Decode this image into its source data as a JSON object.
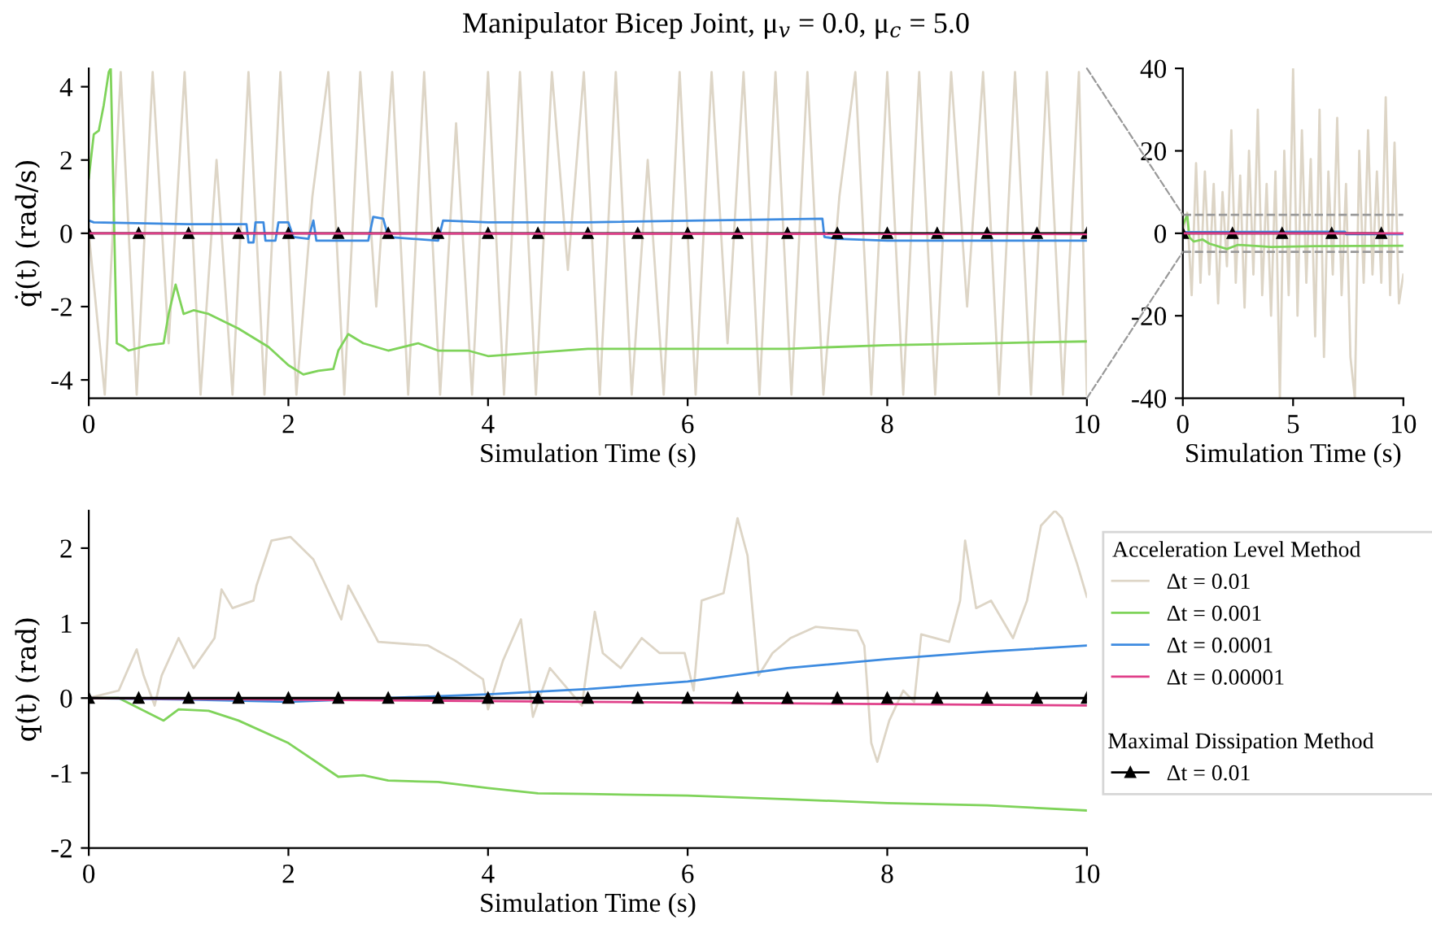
{
  "chart_data": [
    {
      "type": "line",
      "title": "Manipulator Bicep Joint, μ$_{v}$ = 0.0, μ$_{c}$ = 5.0",
      "xlabel": "Simulation Time (s)",
      "ylabel": "q̇(t) (rad/s)",
      "xlim": [
        0,
        10
      ],
      "ylim": [
        -4.5,
        4.5
      ],
      "xticks": [
        0,
        2,
        4,
        6,
        8,
        10
      ],
      "yticks": [
        -4,
        -2,
        0,
        2,
        4
      ],
      "grid": false,
      "legend": false,
      "line_style": "solid",
      "series": [
        {
          "color": "#ddd5c6",
          "marker": "none",
          "x": [
            0,
            0.16,
            0.32,
            0.48,
            0.64,
            0.8,
            0.96,
            1.12,
            1.28,
            1.44,
            1.6,
            1.76,
            1.92,
            2.08,
            2.24,
            2.4,
            2.56,
            2.72,
            2.88,
            3.04,
            3.2,
            3.36,
            3.52,
            3.68,
            3.84,
            4,
            4.16,
            4.32,
            4.48,
            4.64,
            4.8,
            4.96,
            5.12,
            5.28,
            5.44,
            5.6,
            5.76,
            5.92,
            6.08,
            6.24,
            6.4,
            6.56,
            6.72,
            6.88,
            7.04,
            7.2,
            7.36,
            7.52,
            7.68,
            7.84,
            8,
            8.16,
            8.32,
            8.48,
            8.64,
            8.8,
            8.96,
            9.12,
            9.28,
            9.44,
            9.6,
            9.76,
            9.92,
            10
          ],
          "values": [
            0,
            -4.4,
            4.4,
            -4.4,
            4.4,
            -3,
            4.4,
            -4.4,
            2,
            -4.4,
            4.4,
            -4.4,
            4.4,
            -4.4,
            1,
            4.4,
            -4.4,
            4.4,
            -2,
            4.4,
            -4.4,
            4.4,
            -4.4,
            3,
            -4.4,
            4.4,
            -4.4,
            4.4,
            -4.4,
            4.4,
            -1,
            4.4,
            -4.4,
            4.4,
            -4.4,
            2,
            -4.4,
            4.4,
            -4.4,
            4.4,
            -3,
            4.4,
            -4.4,
            4.4,
            -4.4,
            4.4,
            -4.4,
            1,
            4.4,
            -4.4,
            4.4,
            -4.4,
            4.4,
            -4.4,
            4.4,
            -2,
            4.4,
            -4.4,
            4.4,
            -4.4,
            4.4,
            -4.4,
            4.4,
            -4.4
          ]
        },
        {
          "color": "#7fd35a",
          "marker": "none",
          "x": [
            0,
            0.05,
            0.1,
            0.15,
            0.2,
            0.22,
            0.28,
            0.35,
            0.4,
            0.6,
            0.75,
            0.8,
            0.87,
            0.95,
            1.05,
            1.2,
            1.5,
            1.8,
            2.0,
            2.15,
            2.3,
            2.45,
            2.5,
            2.6,
            2.75,
            3.0,
            3.3,
            3.5,
            3.8,
            4.0,
            4.5,
            5,
            6,
            7,
            8,
            9,
            10
          ],
          "values": [
            1.5,
            2.7,
            2.8,
            3.5,
            4.4,
            4.5,
            -3,
            -3.1,
            -3.2,
            -3.05,
            -3.0,
            -2.2,
            -1.4,
            -2.2,
            -2.1,
            -2.2,
            -2.6,
            -3.1,
            -3.6,
            -3.85,
            -3.75,
            -3.7,
            -3.2,
            -2.75,
            -3.0,
            -3.2,
            -3.0,
            -3.2,
            -3.2,
            -3.35,
            -3.25,
            -3.15,
            -3.15,
            -3.15,
            -3.05,
            -3.0,
            -2.95
          ]
        },
        {
          "color": "#3d8be0",
          "marker": "none",
          "x": [
            0,
            0.05,
            1,
            1.58,
            1.6,
            1.65,
            1.67,
            1.75,
            1.77,
            1.87,
            1.9,
            2.0,
            2.05,
            2.2,
            2.25,
            2.28,
            2.8,
            2.85,
            2.95,
            3.0,
            3.5,
            3.55,
            4,
            5,
            7.35,
            7.37,
            7.5,
            8,
            10
          ],
          "values": [
            0.35,
            0.3,
            0.25,
            0.25,
            -0.25,
            -0.25,
            0.3,
            0.3,
            -0.2,
            -0.2,
            0.3,
            0.3,
            -0.1,
            -0.15,
            0.35,
            -0.2,
            -0.2,
            0.45,
            0.4,
            -0.1,
            -0.2,
            0.35,
            0.3,
            0.3,
            0.4,
            -0.1,
            -0.15,
            -0.2,
            -0.2
          ]
        },
        {
          "color": "#000000",
          "marker": "triangle",
          "x": [
            0,
            0.5,
            1,
            1.5,
            2,
            2.5,
            3,
            3.5,
            4,
            4.5,
            5,
            5.5,
            6,
            6.5,
            7,
            7.5,
            8,
            8.5,
            9,
            9.5,
            10
          ],
          "values": [
            0,
            0,
            0,
            0,
            0,
            0,
            0,
            0,
            0,
            0,
            0,
            0,
            0,
            0,
            0,
            0,
            0,
            0,
            0,
            0,
            0
          ]
        },
        {
          "color": "#e0408a",
          "marker": "none",
          "x": [
            0,
            10
          ],
          "values": [
            0,
            -0.02
          ]
        }
      ]
    },
    {
      "type": "line",
      "xlabel": "Simulation Time (s)",
      "xlim": [
        0,
        10
      ],
      "ylim": [
        -40,
        40
      ],
      "xticks": [
        0,
        5,
        10
      ],
      "yticks": [
        -40,
        -20,
        0,
        20,
        40
      ],
      "grid": false,
      "legend": false,
      "line_style": "solid",
      "ref_lines": [
        {
          "axis": "y",
          "value": 4.5,
          "color": "#999999",
          "line_style": "dashed"
        },
        {
          "axis": "y",
          "value": -4.5,
          "color": "#999999",
          "line_style": "dashed"
        }
      ],
      "series": [
        {
          "color": "#ddd5c6",
          "marker": "none",
          "x": [
            0,
            0.2,
            0.4,
            0.6,
            0.8,
            1,
            1.2,
            1.4,
            1.6,
            1.8,
            2,
            2.2,
            2.4,
            2.6,
            2.8,
            3,
            3.2,
            3.4,
            3.6,
            3.8,
            4,
            4.2,
            4.4,
            4.6,
            4.8,
            5,
            5.2,
            5.4,
            5.6,
            5.8,
            6,
            6.2,
            6.4,
            6.6,
            6.8,
            7,
            7.2,
            7.4,
            7.6,
            7.8,
            8,
            8.2,
            8.4,
            8.6,
            8.8,
            9,
            9.2,
            9.4,
            9.6,
            9.8,
            10
          ],
          "values": [
            0,
            5,
            -15,
            17,
            -12,
            15,
            -10,
            12,
            -17,
            10,
            -8,
            25,
            -12,
            14,
            -18,
            20,
            -10,
            30,
            -15,
            12,
            -20,
            15,
            -40,
            20,
            -15,
            40,
            -20,
            25,
            -12,
            18,
            -25,
            30,
            -30,
            15,
            -10,
            28,
            -15,
            12,
            -30,
            -40,
            20,
            -12,
            25,
            -10,
            15,
            -12,
            33,
            -15,
            22,
            -17,
            -10
          ]
        },
        {
          "color": "#7fd35a",
          "marker": "none",
          "x": [
            0,
            0.2,
            0.3,
            0.5,
            0.9,
            1.2,
            2,
            2.5,
            4,
            6,
            10
          ],
          "values": [
            2,
            4.5,
            -1,
            -2,
            -1.5,
            -2.5,
            -3.8,
            -2.8,
            -3.3,
            -3.1,
            -3
          ]
        },
        {
          "color": "#3d8be0",
          "marker": "none",
          "x": [
            0,
            7.35,
            7.4,
            10
          ],
          "values": [
            0.3,
            0.4,
            -0.2,
            -0.2
          ]
        },
        {
          "color": "#000000",
          "marker": "triangle",
          "x": [
            0,
            2.25,
            4.5,
            6.75,
            9
          ],
          "values": [
            0,
            0,
            0,
            0,
            0
          ]
        },
        {
          "color": "#e0408a",
          "marker": "none",
          "x": [
            0,
            10
          ],
          "values": [
            0,
            0
          ]
        }
      ]
    },
    {
      "type": "line",
      "xlabel": "Simulation Time (s)",
      "ylabel": "q(t) (rad)",
      "xlim": [
        0,
        10
      ],
      "ylim": [
        -2,
        2.5
      ],
      "xticks": [
        0,
        2,
        4,
        6,
        8,
        10
      ],
      "yticks": [
        -2,
        -1,
        0,
        1,
        2
      ],
      "grid": false,
      "legend": "right",
      "legend_title": "Acceleration Level Method",
      "line_style": "solid",
      "annotations": [
        "Maximal Dissipation Method"
      ],
      "series": [
        {
          "name": "Δt = 0.01",
          "color": "#ddd5c6",
          "marker": "none",
          "x": [
            0,
            0.3,
            0.48,
            0.55,
            0.66,
            0.73,
            0.9,
            1.05,
            1.26,
            1.33,
            1.44,
            1.65,
            1.68,
            1.83,
            2.02,
            2.25,
            2.53,
            2.6,
            2.9,
            3.4,
            3.67,
            3.95,
            4.0,
            4.15,
            4.33,
            4.45,
            4.62,
            4.94,
            5.07,
            5.15,
            5.33,
            5.54,
            5.72,
            5.97,
            6.06,
            6.14,
            6.36,
            6.5,
            6.6,
            6.71,
            6.85,
            7.03,
            7.28,
            7.7,
            7.77,
            7.84,
            7.9,
            8.02,
            8.16,
            8.27,
            8.34,
            8.62,
            8.73,
            8.78,
            8.89,
            9.04,
            9.26,
            9.4,
            9.54,
            9.68,
            9.75,
            9.9,
            10
          ],
          "values": [
            0,
            0.1,
            0.65,
            0.3,
            -0.1,
            0.3,
            0.8,
            0.4,
            0.8,
            1.45,
            1.2,
            1.3,
            1.5,
            2.1,
            2.15,
            1.85,
            1.05,
            1.5,
            0.75,
            0.7,
            0.5,
            0.25,
            -0.15,
            0.5,
            1.05,
            -0.25,
            0.4,
            -0.1,
            1.15,
            0.6,
            0.4,
            0.8,
            0.6,
            0.6,
            0.1,
            1.3,
            1.4,
            2.4,
            1.9,
            0.3,
            0.6,
            0.8,
            0.95,
            0.9,
            0.7,
            -0.6,
            -0.85,
            -0.3,
            0.1,
            -0.05,
            0.85,
            0.75,
            1.3,
            2.1,
            1.2,
            1.3,
            0.8,
            1.3,
            2.3,
            2.5,
            2.4,
            1.8,
            1.35
          ]
        },
        {
          "name": "Δt = 0.001",
          "color": "#7fd35a",
          "marker": "none",
          "x": [
            0,
            0.3,
            0.75,
            0.9,
            1.2,
            1.5,
            2,
            2.5,
            2.75,
            3,
            3.5,
            4,
            4.5,
            5,
            6,
            7,
            8,
            9,
            10
          ],
          "values": [
            0,
            0,
            -0.3,
            -0.15,
            -0.17,
            -0.3,
            -0.6,
            -1.05,
            -1.03,
            -1.1,
            -1.12,
            -1.2,
            -1.27,
            -1.28,
            -1.3,
            -1.35,
            -1.4,
            -1.43,
            -1.5
          ]
        },
        {
          "name": "Δt = 0.0001",
          "color": "#3d8be0",
          "marker": "none",
          "x": [
            0,
            1,
            2,
            3,
            4,
            5,
            6,
            7,
            8,
            9,
            10
          ],
          "values": [
            0,
            -0.02,
            -0.05,
            0,
            0.05,
            0.12,
            0.22,
            0.4,
            0.52,
            0.62,
            0.7
          ]
        },
        {
          "name": "Δt = 0.00001",
          "color": "#e0408a",
          "marker": "none",
          "x": [
            0,
            5,
            10
          ],
          "values": [
            0,
            -0.05,
            -0.1
          ]
        },
        {
          "name": "Δt = 0.01",
          "color": "#000000",
          "marker": "triangle",
          "x": [
            0,
            0.5,
            1,
            1.5,
            2,
            2.5,
            3,
            3.5,
            4,
            4.5,
            5,
            5.5,
            6,
            6.5,
            7,
            7.5,
            8,
            8.5,
            9,
            9.5,
            10
          ],
          "values": [
            0,
            0,
            0,
            0,
            0,
            0,
            0,
            0,
            0,
            0,
            0,
            0,
            0,
            0,
            0,
            0,
            0,
            0,
            0,
            0,
            0
          ]
        }
      ]
    }
  ]
}
